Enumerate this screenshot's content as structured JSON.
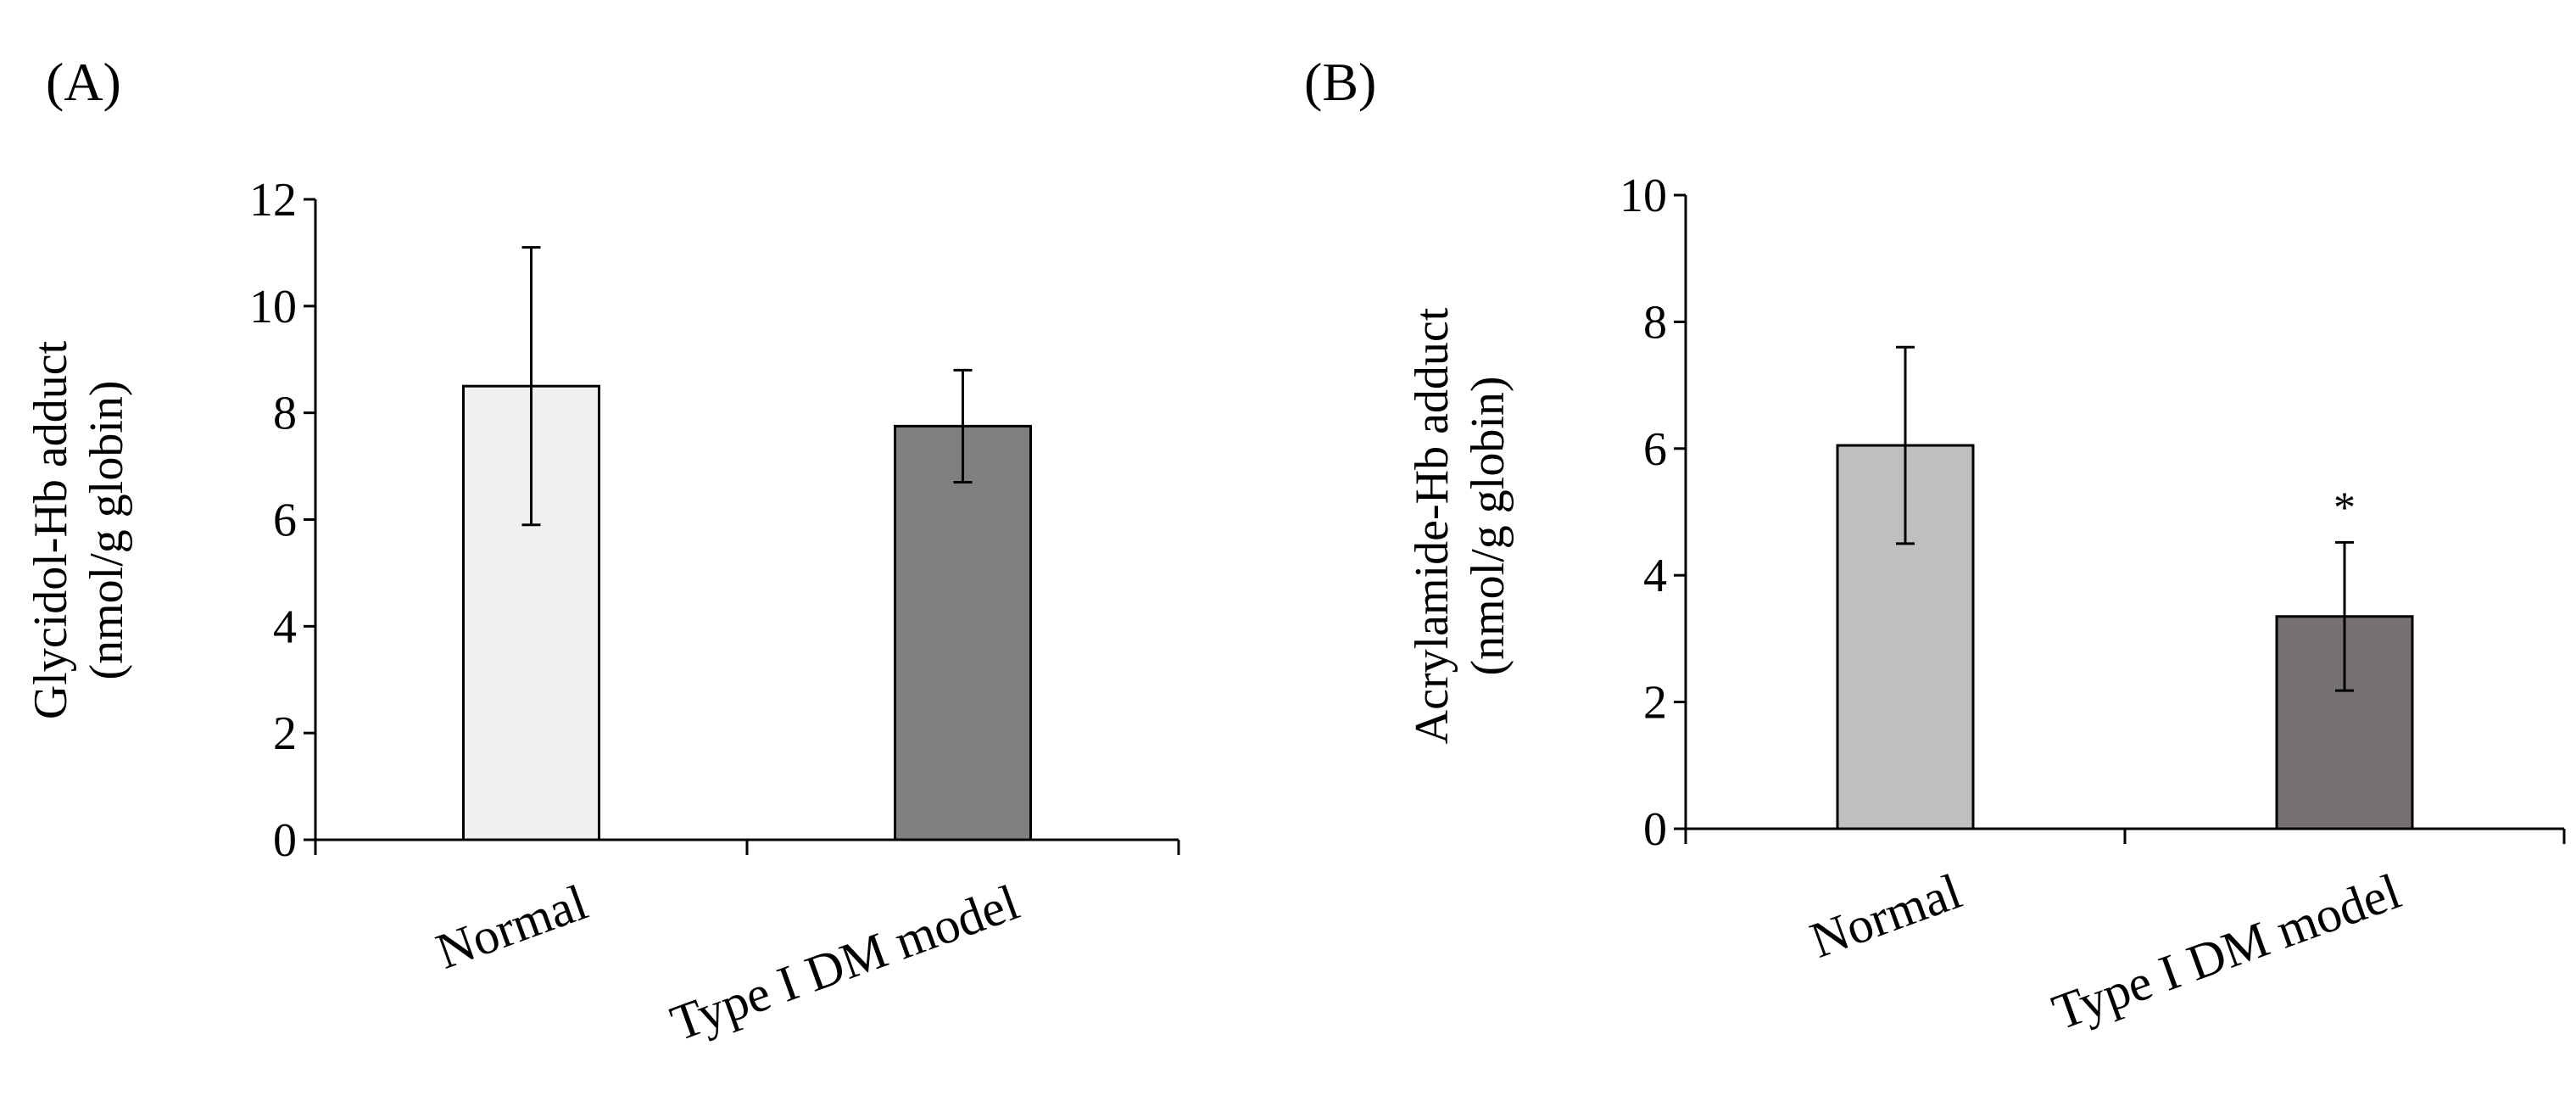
{
  "chart_data": [
    {
      "type": "bar",
      "panel_label": "(A)",
      "title": "",
      "xlabel": "",
      "ylabel": "Glycidol-Hb adduct",
      "ylabel_unit": "(nmol/g globin)",
      "categories": [
        "Normal",
        "Type I DM model"
      ],
      "values": [
        8.5,
        7.75
      ],
      "errors": [
        2.6,
        1.05
      ],
      "colors": [
        "#f0f0f0",
        "#808080"
      ],
      "annotations": [
        "",
        ""
      ],
      "ylim": [
        0,
        12
      ],
      "yticks": [
        0,
        2,
        4,
        6,
        8,
        10,
        12
      ],
      "grid": false
    },
    {
      "type": "bar",
      "panel_label": "(B)",
      "title": "",
      "xlabel": "",
      "ylabel": "Acrylamide-Hb adduct",
      "ylabel_unit": "(nmol/g globin)",
      "categories": [
        "Normal",
        "Type I DM model"
      ],
      "values": [
        6.05,
        3.35
      ],
      "errors": [
        1.55,
        1.17
      ],
      "colors": [
        "#bfbfbf",
        "#767171"
      ],
      "annotations": [
        "",
        "*"
      ],
      "ylim": [
        0,
        10
      ],
      "yticks": [
        0,
        2,
        4,
        6,
        8,
        10
      ],
      "grid": false
    }
  ]
}
